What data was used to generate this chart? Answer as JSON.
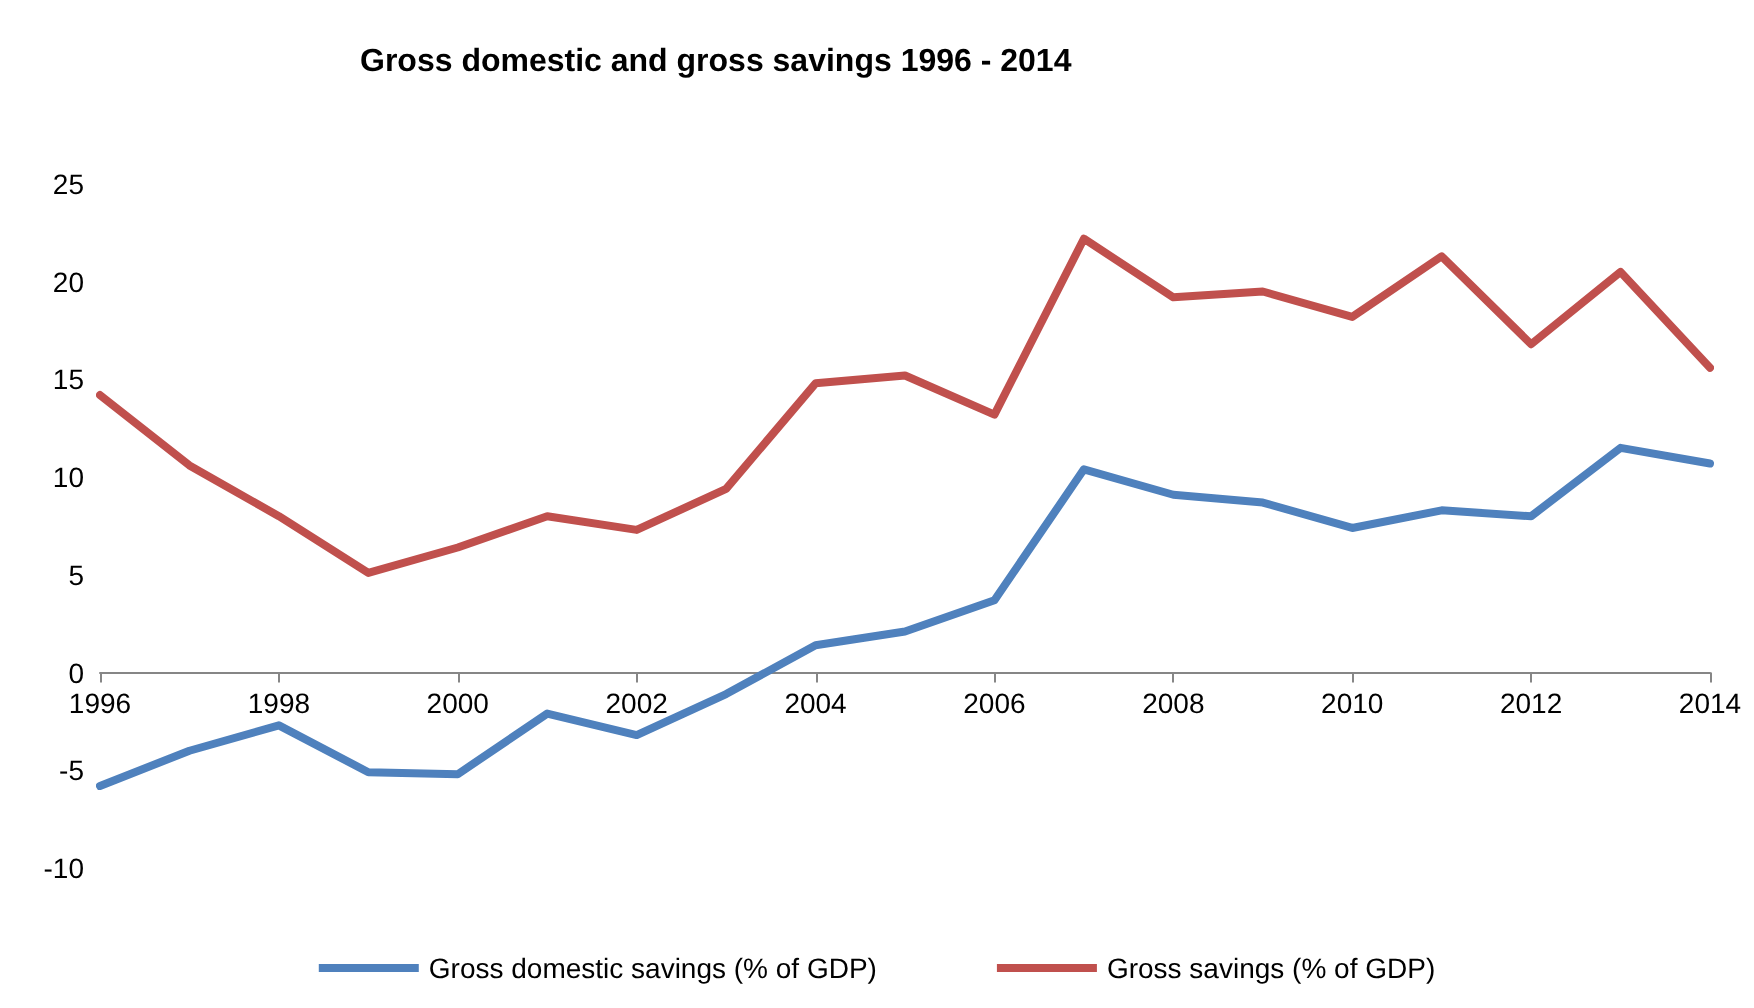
{
  "chart_data": {
    "type": "line",
    "title": "Gross domestic and gross savings 1996 - 2014",
    "x": [
      1996,
      1997,
      1998,
      1999,
      2000,
      2001,
      2002,
      2003,
      2004,
      2005,
      2006,
      2007,
      2008,
      2009,
      2010,
      2011,
      2012,
      2013,
      2014
    ],
    "xlim": [
      1996,
      2014
    ],
    "xticks": [
      1996,
      1998,
      2000,
      2002,
      2004,
      2006,
      2008,
      2010,
      2012,
      2014
    ],
    "ylim": [
      -10,
      25
    ],
    "yticks": [
      -10,
      -5,
      0,
      5,
      10,
      15,
      20,
      25
    ],
    "series": [
      {
        "name": "Gross domestic savings (% of GDP)",
        "color": "#4f81bd",
        "values": [
          -5.8,
          -4.0,
          -2.7,
          -5.1,
          -5.2,
          -2.1,
          -3.2,
          -1.1,
          1.4,
          2.1,
          3.7,
          10.4,
          9.1,
          8.7,
          7.4,
          8.3,
          8.0,
          11.5,
          10.7
        ]
      },
      {
        "name": "Gross savings (% of GDP)",
        "color": "#c0504d",
        "values": [
          14.2,
          10.6,
          8.0,
          5.1,
          6.4,
          8.0,
          7.3,
          9.4,
          14.8,
          15.2,
          13.2,
          22.2,
          19.2,
          19.5,
          18.2,
          21.3,
          16.8,
          20.5,
          15.6
        ]
      }
    ],
    "grid": false,
    "legend": "bottom",
    "marker": "none",
    "line_style": "solid"
  }
}
